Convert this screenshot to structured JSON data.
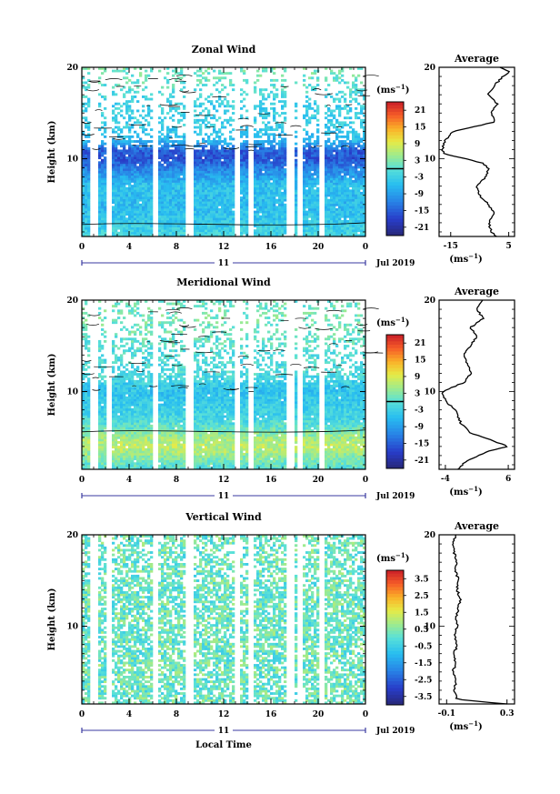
{
  "figure": {
    "xlabel": "Local Time"
  },
  "chart_data": [
    {
      "type": "heatmap",
      "title": "Zonal Wind",
      "xlabel": "",
      "ylabel": "Height (km)",
      "x_ticks": [
        "0",
        "4",
        "8",
        "12",
        "16",
        "20",
        "0"
      ],
      "xlim": [
        0,
        24
      ],
      "y_ticks": [
        "10",
        "20"
      ],
      "ylim": [
        1.5,
        20
      ],
      "date_day": "11",
      "date_label": "Jul 2019",
      "colorbar": {
        "unit_prefix": "(ms",
        "unit_exp": "−1",
        "unit_suffix": ")",
        "ticks": [
          "21",
          "15",
          "9",
          "3",
          "-3",
          "-9",
          "-15",
          "-21"
        ],
        "range": [
          -24,
          24
        ],
        "marker_value": 0
      },
      "profile": {
        "title": "Average",
        "x_ticks": [
          "-15",
          "5"
        ],
        "xlim": [
          -19,
          7
        ],
        "unit_prefix": "(ms",
        "unit_exp": "−1",
        "unit_suffix": ")",
        "heights": [
          1.5,
          2,
          3,
          4,
          5,
          6,
          7,
          8,
          9,
          9.5,
          10,
          10.5,
          11,
          12,
          13,
          14,
          15,
          16,
          17,
          18,
          19,
          19.5,
          20
        ],
        "values": [
          1,
          -1,
          -2,
          0,
          -2,
          -5,
          -6,
          -3,
          -2,
          -4,
          -10,
          -17,
          -18,
          -17,
          -14,
          0,
          -1,
          1,
          -2,
          0,
          3,
          5,
          2
        ]
      },
      "base_profile": {
        "heights": [
          1.5,
          3,
          5,
          7,
          9,
          10,
          11,
          12,
          14,
          16,
          18,
          20
        ],
        "values": [
          -2,
          -4,
          -6,
          -5,
          -12,
          -16,
          -15,
          -6,
          -3,
          -3,
          0,
          2
        ]
      }
    },
    {
      "type": "heatmap",
      "title": "Meridional Wind",
      "xlabel": "",
      "ylabel": "Height (km)",
      "x_ticks": [
        "0",
        "4",
        "8",
        "12",
        "16",
        "20",
        "0"
      ],
      "xlim": [
        0,
        24
      ],
      "y_ticks": [
        "10",
        "20"
      ],
      "ylim": [
        1.5,
        20
      ],
      "date_day": "11",
      "date_label": "Jul 2019",
      "colorbar": {
        "unit_prefix": "(ms",
        "unit_exp": "−1",
        "unit_suffix": ")",
        "ticks": [
          "21",
          "15",
          "9",
          "3",
          "-3",
          "-9",
          "-15",
          "-21"
        ],
        "range": [
          -24,
          24
        ],
        "marker_value": 0
      },
      "profile": {
        "title": "Average",
        "x_ticks": [
          "-4",
          "6"
        ],
        "xlim": [
          -5,
          7
        ],
        "unit_prefix": "(ms",
        "unit_exp": "−1",
        "unit_suffix": ")",
        "heights": [
          1.5,
          2.5,
          3.5,
          4,
          4.5,
          5.5,
          6.5,
          8,
          9,
          10,
          11,
          12,
          13,
          14,
          15,
          16,
          17,
          18,
          19,
          20
        ],
        "values": [
          -2,
          -0.5,
          3,
          6,
          4,
          0,
          -1.5,
          -2.5,
          -4,
          -4.5,
          -1,
          0,
          -0.5,
          -1,
          0,
          1,
          0,
          2,
          1,
          2
        ]
      },
      "base_profile": {
        "heights": [
          1.5,
          3,
          4,
          5,
          6,
          7,
          9,
          10,
          12,
          14,
          16,
          18,
          20
        ],
        "values": [
          -1,
          4,
          7,
          5,
          1,
          -2,
          -4,
          -5,
          -1,
          -1,
          1,
          2,
          1
        ]
      }
    },
    {
      "type": "heatmap",
      "title": "Vertical Wind",
      "xlabel": "Local Time",
      "ylabel": "Height (km)",
      "x_ticks": [
        "0",
        "4",
        "8",
        "12",
        "16",
        "20",
        "0"
      ],
      "xlim": [
        0,
        24
      ],
      "y_ticks": [
        "10",
        "20"
      ],
      "ylim": [
        1.5,
        20
      ],
      "date_day": "11",
      "date_label": "Jul 2019",
      "colorbar": {
        "unit_prefix": "(ms",
        "unit_exp": "−1",
        "unit_suffix": ")",
        "ticks": [
          "3.5",
          "2.5",
          "1.5",
          "0.5",
          "-0.5",
          "-1.5",
          "-2.5",
          "-3.5"
        ],
        "range": [
          -4,
          4
        ],
        "marker_value": null
      },
      "profile": {
        "title": "Average",
        "x_ticks": [
          "-0.1",
          "0.3"
        ],
        "xlim": [
          -0.15,
          0.35
        ],
        "unit_prefix": "(ms",
        "unit_exp": "−1",
        "unit_suffix": ")",
        "heights": [
          1.5,
          2,
          3,
          4,
          5,
          6,
          7,
          8,
          9,
          10,
          11,
          12,
          13,
          14,
          15,
          16,
          17,
          18,
          19,
          20
        ],
        "values": [
          0.3,
          -0.03,
          -0.05,
          -0.04,
          -0.06,
          -0.04,
          -0.05,
          -0.03,
          -0.05,
          -0.03,
          -0.04,
          -0.02,
          -0.01,
          -0.03,
          -0.02,
          -0.04,
          -0.03,
          -0.05,
          -0.06,
          -0.04
        ]
      },
      "base_profile": {
        "heights": [
          1.5,
          5,
          10,
          15,
          20
        ],
        "values": [
          0,
          0,
          0,
          0,
          0
        ]
      }
    }
  ]
}
